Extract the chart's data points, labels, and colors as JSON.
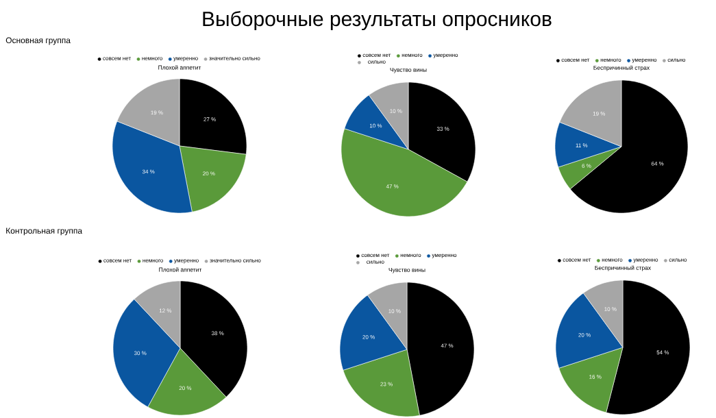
{
  "chart_data": [
    {
      "type": "pie",
      "title": "Плохой аппетит",
      "categories": [
        "совсем нет",
        "немного",
        "умеренно",
        "значительно сильно"
      ],
      "values": [
        27,
        20,
        34,
        19
      ],
      "colors": [
        "#000000",
        "#5a9a3a",
        "#0a56a0",
        "#a6a6a6"
      ],
      "value_labels": [
        "27 %",
        "20 %",
        "34 %",
        "19 %"
      ],
      "legend": "top",
      "annotations": [
        "Выборочные результаты опросников",
        "Основная группа"
      ]
    },
    {
      "type": "pie",
      "title": "Чувство вины",
      "categories": [
        "совсем нет",
        "немного",
        "умеренно",
        "сильно"
      ],
      "values": [
        33,
        47,
        10,
        10
      ],
      "colors": [
        "#000000",
        "#5a9a3a",
        "#0a56a0",
        "#a6a6a6"
      ],
      "value_labels": [
        "33 %",
        "47 %",
        "10 %",
        "10 %"
      ],
      "legend": "top"
    },
    {
      "type": "pie",
      "title": "Беспричинный страх",
      "categories": [
        "совсем нет",
        "немного",
        "умеренно",
        "сильно"
      ],
      "values": [
        64,
        6,
        11,
        19
      ],
      "colors": [
        "#000000",
        "#5a9a3a",
        "#0a56a0",
        "#a6a6a6"
      ],
      "value_labels": [
        "64 %",
        "6 %",
        "11 %",
        "19 %"
      ],
      "legend": "top"
    },
    {
      "type": "pie",
      "title": "Плохой аппетит",
      "categories": [
        "совсем нет",
        "немного",
        "умеренно",
        "значительно сильно"
      ],
      "values": [
        38,
        20,
        30,
        12
      ],
      "colors": [
        "#000000",
        "#5a9a3a",
        "#0a56a0",
        "#a6a6a6"
      ],
      "value_labels": [
        "38 %",
        "20 %",
        "30 %",
        "12 %"
      ],
      "legend": "top",
      "annotations": [
        "Контрольная группа"
      ]
    },
    {
      "type": "pie",
      "title": "Чувство вины",
      "categories": [
        "совсем нет",
        "немного",
        "умеренно",
        "сильно"
      ],
      "values": [
        47,
        23,
        20,
        10
      ],
      "colors": [
        "#000000",
        "#5a9a3a",
        "#0a56a0",
        "#a6a6a6"
      ],
      "value_labels": [
        "47 %",
        "23 %",
        "20 %",
        "10 %"
      ],
      "legend": "top"
    },
    {
      "type": "pie",
      "title": "Беспричинный страх",
      "categories": [
        "совсем нет",
        "немного",
        "умеренно",
        "сильно"
      ],
      "values": [
        54,
        16,
        20,
        10
      ],
      "colors": [
        "#000000",
        "#5a9a3a",
        "#0a56a0",
        "#a6a6a6"
      ],
      "value_labels": [
        "54 %",
        "16 %",
        "20 %",
        "10 %"
      ],
      "legend": "top"
    }
  ]
}
